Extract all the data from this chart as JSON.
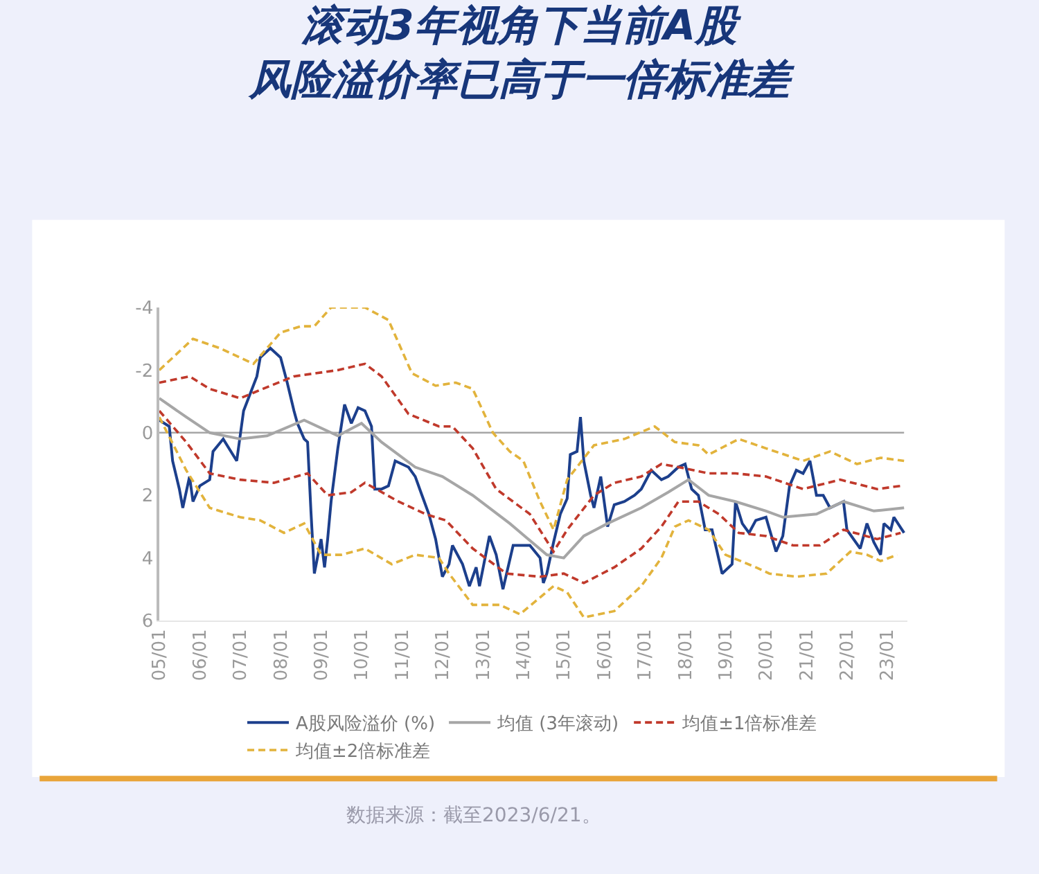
{
  "chart_data": {
    "type": "line",
    "title": "滚动3年视角下当前A股风险溢价率已高于一倍标准差",
    "annotations": [
      "数据来源：截至2023/6/21。"
    ],
    "series": [
      {
        "name": "A股风险溢价 (%)",
        "color": "#1c3f8c",
        "line_style": "solid",
        "x": [
          "2005-01",
          "2005-04",
          "2005-05",
          "2005-07",
          "2005-08",
          "2005-10",
          "2005-11",
          "2006-01",
          "2006-04",
          "2006-05",
          "2006-08",
          "2006-12",
          "2007-02",
          "2007-06",
          "2007-07",
          "2007-10",
          "2008-01",
          "2008-03",
          "2008-05",
          "2008-06",
          "2008-08",
          "2008-09",
          "2008-10",
          "2008-11",
          "2009-01",
          "2009-02",
          "2009-03",
          "2009-04",
          "2009-06",
          "2009-08",
          "2009-10",
          "2009-12",
          "2010-02",
          "2010-04",
          "2010-05",
          "2010-07",
          "2010-09",
          "2010-11",
          "2011-03",
          "2011-05",
          "2011-07",
          "2011-09",
          "2011-11",
          "2012-01",
          "2012-03",
          "2012-04",
          "2012-07",
          "2012-09",
          "2012-11",
          "2012-12",
          "2013-03",
          "2013-05",
          "2013-07",
          "2013-10",
          "2013-12",
          "2014-03",
          "2014-06",
          "2014-07",
          "2014-08",
          "2014-10",
          "2014-12",
          "2015-02",
          "2015-03",
          "2015-05",
          "2015-06",
          "2015-07",
          "2015-09",
          "2015-10",
          "2015-12",
          "2016-02",
          "2016-04",
          "2016-07",
          "2016-10",
          "2016-12",
          "2017-03",
          "2017-06",
          "2017-08",
          "2017-11",
          "2018-01",
          "2018-03",
          "2018-05",
          "2018-07",
          "2018-09",
          "2018-12",
          "2019-03",
          "2019-04",
          "2019-06",
          "2019-08",
          "2019-10",
          "2020-01",
          "2020-04",
          "2020-06",
          "2020-08",
          "2020-10",
          "2020-12",
          "2021-02",
          "2021-04",
          "2021-06",
          "2021-08",
          "2021-12",
          "2022-01",
          "2022-05",
          "2022-07",
          "2022-09",
          "2022-11",
          "2022-12",
          "2023-02",
          "2023-03",
          "2023-06"
        ],
        "values": [
          -0.4,
          -0.2,
          0.9,
          1.8,
          2.4,
          1.4,
          2.2,
          1.7,
          1.5,
          0.6,
          0.2,
          0.9,
          -0.7,
          -1.8,
          -2.4,
          -2.7,
          -2.4,
          -1.6,
          -0.7,
          -0.3,
          0.2,
          0.3,
          2.5,
          4.5,
          3.4,
          4.3,
          3.4,
          2.2,
          0.5,
          -0.9,
          -0.3,
          -0.8,
          -0.7,
          -0.2,
          1.8,
          1.8,
          1.7,
          0.9,
          1.1,
          1.4,
          2.0,
          2.6,
          3.4,
          4.6,
          4.2,
          3.6,
          4.2,
          4.9,
          4.3,
          4.9,
          3.3,
          3.9,
          5.0,
          3.6,
          3.6,
          3.6,
          4.0,
          4.8,
          4.5,
          3.5,
          2.6,
          2.1,
          0.7,
          0.6,
          -0.5,
          0.9,
          2.0,
          2.4,
          1.4,
          3.0,
          2.3,
          2.2,
          2.0,
          1.8,
          1.2,
          1.5,
          1.4,
          1.1,
          1.0,
          1.8,
          2.0,
          3.1,
          3.1,
          4.5,
          4.2,
          2.2,
          2.9,
          3.2,
          2.8,
          2.7,
          3.8,
          3.3,
          1.7,
          1.2,
          1.3,
          0.9,
          2.0,
          2.0,
          2.4,
          2.2,
          3.1,
          3.7,
          2.9,
          3.5,
          3.9,
          2.9,
          3.1,
          2.7,
          3.2
        ]
      },
      {
        "name": "均值 (3年滚动)",
        "color": "#a6a6a6",
        "line_style": "solid",
        "x": [
          "2005-01",
          "2005-09",
          "2006-04",
          "2007-01",
          "2007-09",
          "2008-08",
          "2009-06",
          "2010-01",
          "2010-07",
          "2011-05",
          "2012-01",
          "2012-10",
          "2013-09",
          "2014-08",
          "2015-01",
          "2015-07",
          "2016-02",
          "2016-12",
          "2017-08",
          "2018-02",
          "2018-08",
          "2019-04",
          "2020-01",
          "2020-06",
          "2021-04",
          "2021-12",
          "2022-09",
          "2023-06"
        ],
        "values": [
          -1.1,
          -0.5,
          0.0,
          0.2,
          0.1,
          -0.4,
          0.1,
          -0.3,
          0.3,
          1.1,
          1.4,
          2.0,
          2.9,
          3.9,
          4.0,
          3.3,
          2.9,
          2.4,
          1.9,
          1.5,
          2.0,
          2.2,
          2.5,
          2.7,
          2.6,
          2.2,
          2.5,
          2.4
        ]
      },
      {
        "name": "均值±1倍标准差",
        "color": "#c0392b",
        "line_style": "dashed",
        "x": [
          "2005-01",
          "2005-10",
          "2006-04",
          "2007-01",
          "2007-10",
          "2008-05",
          "2009-06",
          "2010-02",
          "2010-07",
          "2011-03",
          "2011-12",
          "2012-04",
          "2012-10",
          "2013-05",
          "2014-03",
          "2014-10",
          "2015-02",
          "2015-10",
          "2016-04",
          "2016-12",
          "2017-06",
          "2017-11",
          "2018-08",
          "2019-04",
          "2020-01",
          "2020-12",
          "2021-11",
          "2022-10",
          "2023-05"
        ],
        "values": [
          -1.6,
          -1.8,
          -1.4,
          -1.1,
          -1.5,
          -1.8,
          -2.0,
          -2.2,
          -1.8,
          -0.6,
          -0.2,
          -0.2,
          0.5,
          1.8,
          2.6,
          3.8,
          3.1,
          2.0,
          1.6,
          1.4,
          1.0,
          1.1,
          1.3,
          1.3,
          1.4,
          1.8,
          1.5,
          1.8,
          1.7
        ]
      },
      {
        "color": "#c0392b",
        "line_style": "dashed",
        "x": [
          "2005-01",
          "2005-09",
          "2006-04",
          "2007-01",
          "2007-11",
          "2008-09",
          "2009-03",
          "2009-10",
          "2010-02",
          "2010-12",
          "2011-08",
          "2012-02",
          "2012-10",
          "2013-08",
          "2014-06",
          "2015-01",
          "2015-07",
          "2016-04",
          "2016-12",
          "2017-06",
          "2017-11",
          "2018-05",
          "2018-11",
          "2019-05",
          "2020-01",
          "2020-09",
          "2021-05",
          "2021-12",
          "2022-10",
          "2023-05"
        ],
        "values": [
          -0.7,
          0.3,
          1.3,
          1.5,
          1.6,
          1.3,
          2.0,
          1.9,
          1.6,
          2.2,
          2.6,
          2.8,
          3.7,
          4.5,
          4.6,
          4.5,
          4.8,
          4.3,
          3.7,
          3.0,
          2.2,
          2.2,
          2.6,
          3.2,
          3.3,
          3.6,
          3.6,
          3.1,
          3.4,
          3.2
        ]
      },
      {
        "name": "均值±2倍标准差",
        "color": "#e2b33c",
        "line_style": "dashed",
        "x": [
          "2005-01",
          "2005-11",
          "2006-07",
          "2007-05",
          "2008-01",
          "2008-07",
          "2008-11",
          "2009-04",
          "2010-02",
          "2010-09",
          "2011-04",
          "2011-11",
          "2012-05",
          "2012-10",
          "2013-04",
          "2013-09",
          "2014-01",
          "2014-06",
          "2014-10",
          "2015-02",
          "2015-10",
          "2016-07",
          "2017-04",
          "2017-10",
          "2018-05",
          "2018-08",
          "2019-05",
          "2020-01",
          "2020-12",
          "2021-08",
          "2022-04",
          "2022-11",
          "2023-06"
        ],
        "values": [
          -2.0,
          -3.0,
          -2.7,
          -2.2,
          -3.2,
          -3.4,
          -3.4,
          -4.0,
          -4.0,
          -3.6,
          -1.9,
          -1.5,
          -1.6,
          -1.4,
          0.0,
          0.6,
          0.9,
          2.2,
          3.1,
          1.5,
          0.4,
          0.2,
          -0.2,
          0.3,
          0.4,
          0.7,
          0.2,
          0.5,
          0.9,
          0.6,
          1.0,
          0.8,
          0.9
        ]
      },
      {
        "color": "#e2b33c",
        "line_style": "dashed",
        "x": [
          "2005-01",
          "2005-09",
          "2006-04",
          "2007-01",
          "2007-07",
          "2008-02",
          "2008-08",
          "2009-01",
          "2009-07",
          "2010-02",
          "2010-10",
          "2011-05",
          "2011-12",
          "2012-03",
          "2012-10",
          "2013-06",
          "2013-12",
          "2014-10",
          "2015-02",
          "2015-07",
          "2016-04",
          "2016-12",
          "2017-06",
          "2017-10",
          "2018-02",
          "2018-08",
          "2019-01",
          "2019-10",
          "2020-02",
          "2020-10",
          "2021-07",
          "2022-02",
          "2022-07",
          "2022-11",
          "2023-04"
        ],
        "values": [
          -0.5,
          1.2,
          2.4,
          2.7,
          2.8,
          3.2,
          2.9,
          3.9,
          3.9,
          3.7,
          4.2,
          3.9,
          4.0,
          4.5,
          5.5,
          5.5,
          5.8,
          4.9,
          5.1,
          5.9,
          5.7,
          4.9,
          4.0,
          3.0,
          2.8,
          3.1,
          3.9,
          4.3,
          4.5,
          4.6,
          4.5,
          3.8,
          3.9,
          4.1,
          3.9
        ]
      }
    ],
    "xlim": [
      "2005-01",
      "2023-07"
    ],
    "xticks": [
      {
        "value": "2005-01",
        "label": "05/01"
      },
      {
        "value": "2006-01",
        "label": "06/01"
      },
      {
        "value": "2007-01",
        "label": "07/01"
      },
      {
        "value": "2008-01",
        "label": "08/01"
      },
      {
        "value": "2009-01",
        "label": "09/01"
      },
      {
        "value": "2010-01",
        "label": "10/01"
      },
      {
        "value": "2011-01",
        "label": "11/01"
      },
      {
        "value": "2012-01",
        "label": "12/01"
      },
      {
        "value": "2013-01",
        "label": "13/01"
      },
      {
        "value": "2014-01",
        "label": "14/01"
      },
      {
        "value": "2015-01",
        "label": "15/01"
      },
      {
        "value": "2016-01",
        "label": "16/01"
      },
      {
        "value": "2017-01",
        "label": "17/01"
      },
      {
        "value": "2018-01",
        "label": "18/01"
      },
      {
        "value": "2019-01",
        "label": "19/01"
      },
      {
        "value": "2020-01",
        "label": "20/01"
      },
      {
        "value": "2021-01",
        "label": "21/01"
      },
      {
        "value": "2022-01",
        "label": "22/01"
      },
      {
        "value": "2023-01",
        "label": "23/01"
      }
    ],
    "ylim": [
      6,
      -4
    ],
    "yticks": [
      -4,
      -2,
      0,
      2,
      4,
      6
    ],
    "ref_lines": [
      {
        "axis": "y",
        "value": 0,
        "color": "#a6a6a6"
      }
    ],
    "grid": false,
    "legend": "bottom",
    "marker": "none"
  }
}
